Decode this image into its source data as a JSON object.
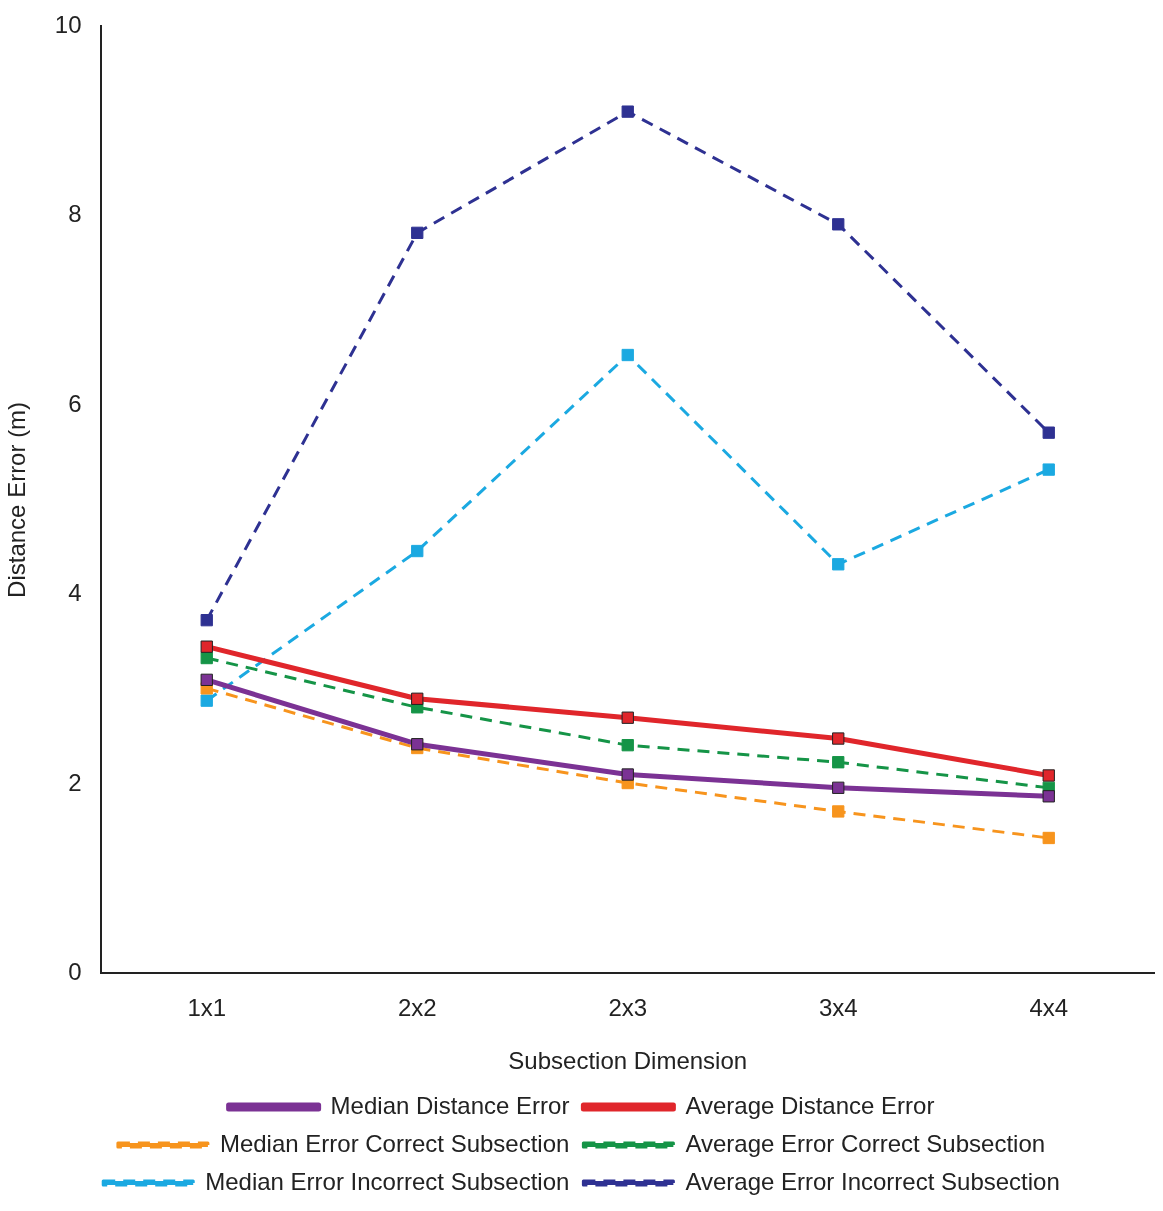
{
  "chart_data": {
    "type": "line",
    "xlabel": "Subsection Dimension",
    "ylabel": "Distance Error (m)",
    "categories": [
      "1x1",
      "2x2",
      "2x3",
      "3x4",
      "4x4"
    ],
    "ylim": [
      0,
      10
    ],
    "yticks": [
      0,
      2,
      4,
      6,
      8,
      10
    ],
    "grid": false,
    "legend": "bottom",
    "marker": "square",
    "series": [
      {
        "name": "Median Distance Error",
        "color": "#7b3294",
        "line_style": "solid",
        "values": [
          3.1,
          2.42,
          2.1,
          1.96,
          1.87
        ]
      },
      {
        "name": "Average Distance Error",
        "color": "#e0262b",
        "line_style": "solid",
        "values": [
          3.45,
          2.9,
          2.7,
          2.48,
          2.09
        ]
      },
      {
        "name": "Median Error Correct Subsection",
        "color": "#f7941d",
        "line_style": "dashed",
        "values": [
          3.01,
          2.38,
          2.01,
          1.71,
          1.43
        ]
      },
      {
        "name": "Average Error Correct Subsection",
        "color": "#159447",
        "line_style": "dashed",
        "values": [
          3.33,
          2.81,
          2.41,
          2.23,
          1.96
        ]
      },
      {
        "name": "Median Error Incorrect Subsection",
        "color": "#1ba9e1",
        "line_style": "dashed",
        "values": [
          2.88,
          4.46,
          6.53,
          4.32,
          5.32
        ]
      },
      {
        "name": "Average Error Incorrect Subsection",
        "color": "#2e3192",
        "line_style": "dashed",
        "values": [
          3.73,
          7.82,
          9.1,
          7.91,
          5.71
        ]
      }
    ]
  }
}
